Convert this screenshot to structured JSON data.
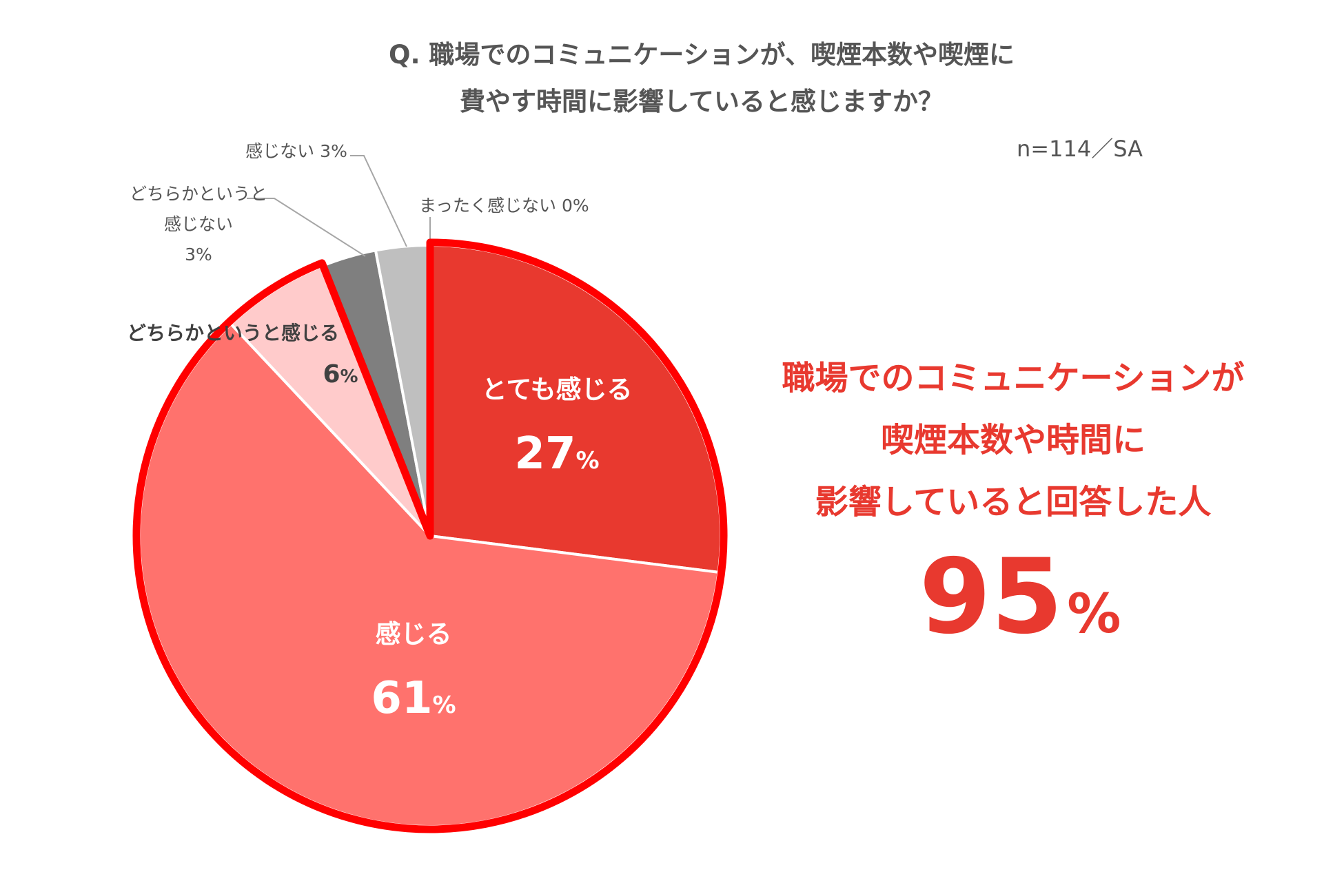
{
  "question": {
    "line1": "Q.  職場でのコミュニケーションが、喫煙本数や喫煙に",
    "line2": "費やす時間に影響していると感じますか？"
  },
  "sample_note": "n=114／SA",
  "chart_data": {
    "type": "pie",
    "unit": "%",
    "start_angle": "12 o'clock",
    "direction": "clockwise",
    "slices": [
      {
        "label": "とても感じる",
        "value": 27,
        "value_text": "27",
        "color": "#e8392f",
        "highlighted": true
      },
      {
        "label": "感じる",
        "value": 61,
        "value_text": "61",
        "color": "#ff726d",
        "highlighted": true
      },
      {
        "label": "どちらかというと感じる",
        "value": 6,
        "value_text": "6",
        "color": "#ffcbcb",
        "highlighted": true
      },
      {
        "label_lines": [
          "どちらかというと",
          "感じない"
        ],
        "value": 3,
        "value_text": "3%",
        "color": "#7f7f7f",
        "highlighted": false
      },
      {
        "label": "感じない",
        "value": 3,
        "value_text": "3%",
        "color": "#bfbfbf",
        "highlighted": false
      },
      {
        "label": "まったく感じない",
        "value": 0,
        "value_text": "0%",
        "color": "#d9d9d9",
        "highlighted": false
      }
    ],
    "highlight_outline_color": "#ff0000"
  },
  "callout": {
    "line1": "職場でのコミュニケーションが",
    "line2": "喫煙本数や時間に",
    "line3": "影響していると回答した人",
    "value": "95",
    "unit": "%",
    "color": "#e8392f"
  }
}
